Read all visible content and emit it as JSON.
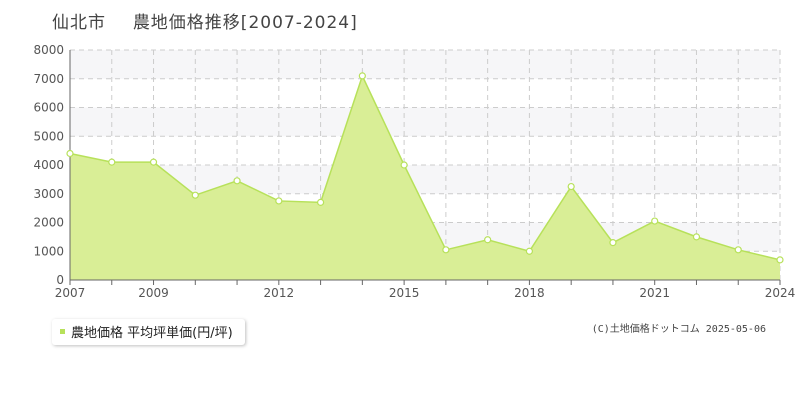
{
  "title": {
    "city": "仙北市",
    "text": "農地価格推移[2007-2024]"
  },
  "legend": {
    "label": "農地価格 平均坪単価(円/坪)"
  },
  "copyright": "(C)土地価格ドットコム 2025-05-06",
  "colors": {
    "line": "#b7e15a",
    "fill": "#d9ee96",
    "marker_fill": "#ffffff",
    "band": "#f6f6f8",
    "grid": "#cccccc"
  },
  "chart_data": {
    "type": "area",
    "title": "農地価格推移[2007-2024]",
    "xlabel": "",
    "ylabel": "",
    "x": [
      2007,
      2008,
      2009,
      2010,
      2011,
      2012,
      2013,
      2014,
      2015,
      2016,
      2017,
      2018,
      2019,
      2020,
      2021,
      2022,
      2023,
      2024
    ],
    "series": [
      {
        "name": "農地価格 平均坪単価(円/坪)",
        "values": [
          4400,
          4100,
          4100,
          2950,
          3450,
          2750,
          2700,
          7100,
          4000,
          1050,
          1400,
          1000,
          3250,
          1300,
          2050,
          1500,
          1050,
          700
        ]
      }
    ],
    "xlim": [
      2007,
      2024
    ],
    "ylim": [
      0,
      8000
    ],
    "y_ticks": [
      0,
      1000,
      2000,
      3000,
      4000,
      5000,
      6000,
      7000,
      8000
    ],
    "x_tick_labels": [
      "2007",
      "2009",
      "2012",
      "2015",
      "2018",
      "2021",
      "2024"
    ],
    "grid": true,
    "legend_position": "bottom-left"
  }
}
